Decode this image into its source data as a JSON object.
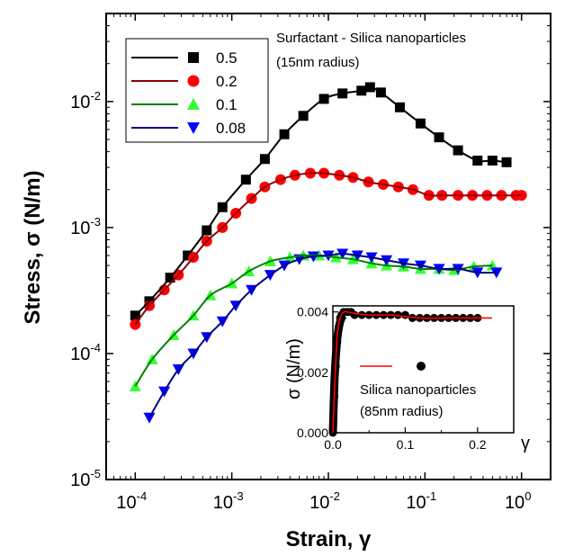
{
  "chart_data": [
    {
      "type": "scatter",
      "title": "",
      "xlabel": "Strain, γ",
      "ylabel": "Stress, σ (N/m)",
      "x_scale": "log",
      "y_scale": "log",
      "xlim": [
        5e-05,
        2
      ],
      "ylim": [
        1e-05,
        0.05
      ],
      "x_ticks": [
        {
          "value": 0.0001,
          "base": "10",
          "exp": "-4"
        },
        {
          "value": 0.001,
          "base": "10",
          "exp": "-3"
        },
        {
          "value": 0.01,
          "base": "10",
          "exp": "-2"
        },
        {
          "value": 0.1,
          "base": "10",
          "exp": "-1"
        },
        {
          "value": 1,
          "base": "10",
          "exp": "0"
        }
      ],
      "y_ticks": [
        {
          "value": 1e-05,
          "base": "10",
          "exp": "-5"
        },
        {
          "value": 0.0001,
          "base": "10",
          "exp": "-4"
        },
        {
          "value": 0.001,
          "base": "10",
          "exp": "-3"
        },
        {
          "value": 0.01,
          "base": "10",
          "exp": "-2"
        }
      ],
      "annotation": [
        "Surfactant - Silica nanoparticles",
        "(15nm radius)"
      ],
      "legend_position": "top-left",
      "series": [
        {
          "name": "0.5",
          "marker": "square",
          "color": "#000000",
          "x": [
            0.0001,
            0.00014,
            0.00023,
            0.00035,
            0.00055,
            0.0008,
            0.0014,
            0.0022,
            0.0035,
            0.0055,
            0.009,
            0.014,
            0.022,
            0.027,
            0.035,
            0.055,
            0.09,
            0.14,
            0.22,
            0.35,
            0.5,
            0.7
          ],
          "y": [
            0.0002,
            0.00026,
            0.0004,
            0.0006,
            0.00095,
            0.00145,
            0.0024,
            0.0035,
            0.0055,
            0.0077,
            0.0105,
            0.0116,
            0.0122,
            0.013,
            0.0118,
            0.009,
            0.0067,
            0.0052,
            0.0041,
            0.0034,
            0.0034,
            0.0033
          ]
        },
        {
          "name": "0.2",
          "marker": "circle",
          "color": "#ff0000",
          "x": [
            0.0001,
            0.00014,
            0.0002,
            0.00028,
            0.0004,
            0.00055,
            0.0008,
            0.0011,
            0.0016,
            0.0022,
            0.0032,
            0.0045,
            0.0065,
            0.009,
            0.013,
            0.018,
            0.026,
            0.037,
            0.053,
            0.075,
            0.11,
            0.15,
            0.22,
            0.31,
            0.44,
            0.62,
            0.88,
            1.0
          ],
          "y": [
            0.00017,
            0.00024,
            0.00032,
            0.00042,
            0.00058,
            0.00078,
            0.001,
            0.0013,
            0.0017,
            0.0021,
            0.0024,
            0.0026,
            0.0027,
            0.0027,
            0.0026,
            0.0025,
            0.0023,
            0.0022,
            0.0021,
            0.002,
            0.0018,
            0.0018,
            0.0018,
            0.0018,
            0.0018,
            0.0018,
            0.0018,
            0.0018
          ]
        },
        {
          "name": "0.1",
          "marker": "triangle-up",
          "color": "#33ff33",
          "x": [
            0.0001,
            0.00015,
            0.00025,
            0.0004,
            0.0006,
            0.001,
            0.0015,
            0.0025,
            0.004,
            0.0055,
            0.008,
            0.012,
            0.018,
            0.028,
            0.04,
            0.06,
            0.09,
            0.14,
            0.2,
            0.32,
            0.5
          ],
          "y": [
            5.5e-05,
            9e-05,
            0.00014,
            0.0002,
            0.00029,
            0.00036,
            0.00045,
            0.00054,
            0.00058,
            0.0006,
            0.0006,
            0.00058,
            0.00056,
            0.00052,
            0.0005,
            0.00049,
            0.00047,
            0.00047,
            0.00046,
            0.00049,
            0.0005
          ]
        },
        {
          "name": "0.08",
          "marker": "triangle-down",
          "color": "#0000ff",
          "x": [
            0.00014,
            0.0002,
            0.00028,
            0.0004,
            0.00055,
            0.0008,
            0.0011,
            0.0016,
            0.0025,
            0.0035,
            0.005,
            0.007,
            0.01,
            0.014,
            0.02,
            0.028,
            0.04,
            0.06,
            0.09,
            0.14,
            0.22,
            0.35,
            0.55
          ],
          "y": [
            3.1e-05,
            5e-05,
            7.5e-05,
            0.0001,
            0.000135,
            0.00018,
            0.00024,
            0.00032,
            0.00042,
            0.0005,
            0.00056,
            0.00059,
            0.0006,
            0.00062,
            0.0006,
            0.00058,
            0.00055,
            0.00052,
            0.0005,
            0.00047,
            0.00047,
            0.00044,
            0.00044
          ]
        }
      ]
    },
    {
      "type": "scatter",
      "title": "",
      "xlabel": "γ",
      "ylabel": "σ (N/m)",
      "xlim": [
        0,
        0.25
      ],
      "ylim": [
        0,
        0.0042
      ],
      "x_ticks": [
        "0.0",
        "0.1",
        "0.2"
      ],
      "y_ticks": [
        "0.000",
        "0.002",
        "0.004"
      ],
      "annotation": [
        "Silica nanoparticles",
        "(85nm radius)"
      ],
      "legend_position": "center",
      "series": [
        {
          "marker": "circle",
          "color": "#000000",
          "x": [
            0.0,
            0.002,
            0.004,
            0.006,
            0.008,
            0.01,
            0.012,
            0.015,
            0.02,
            0.025,
            0.03,
            0.04,
            0.05,
            0.06,
            0.07,
            0.08,
            0.09,
            0.1,
            0.11,
            0.12,
            0.13,
            0.14,
            0.15,
            0.16,
            0.17,
            0.18,
            0.19,
            0.2
          ],
          "y": [
            0.0,
            0.0012,
            0.0022,
            0.003,
            0.0035,
            0.0038,
            0.0039,
            0.004,
            0.004,
            0.004,
            0.0039,
            0.0039,
            0.0039,
            0.0039,
            0.0039,
            0.0039,
            0.0039,
            0.0039,
            0.0038,
            0.0038,
            0.0038,
            0.0038,
            0.0038,
            0.0038,
            0.0038,
            0.0038,
            0.0038,
            0.0038
          ]
        },
        {
          "marker": "line",
          "color": "#ff0000",
          "x": [
            0.0,
            0.003,
            0.006,
            0.01,
            0.015,
            0.02,
            0.03,
            0.05,
            0.08,
            0.12,
            0.16,
            0.2,
            0.22
          ],
          "y": [
            0.0,
            0.0018,
            0.0032,
            0.0038,
            0.004,
            0.004,
            0.00395,
            0.0039,
            0.0039,
            0.0038,
            0.0038,
            0.0038,
            0.0038
          ]
        }
      ]
    }
  ]
}
